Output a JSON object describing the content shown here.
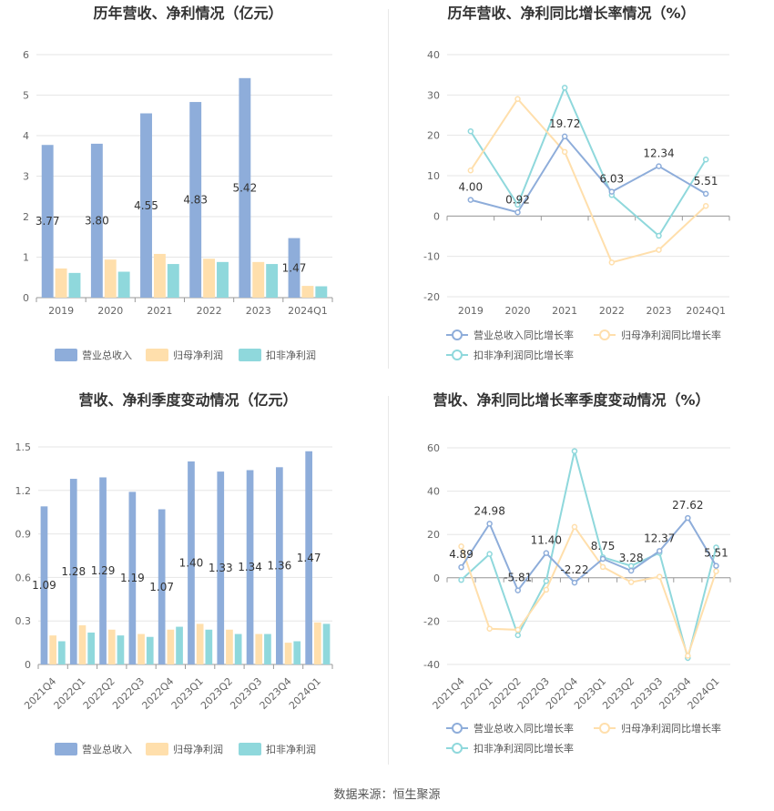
{
  "source_label": "数据来源：恒生聚源",
  "colors": {
    "revenue": "#8EADDA",
    "netprofit": "#FFDFAC",
    "deducted": "#8FD8DC",
    "axis_text": "#666666",
    "grid": "#E6E6E6",
    "label_text": "#333333"
  },
  "chart_data": [
    {
      "type": "bar",
      "title": "历年营收、净利情况（亿元）",
      "categories": [
        "2019",
        "2020",
        "2021",
        "2022",
        "2023",
        "2024Q1"
      ],
      "ylim": [
        0,
        6
      ],
      "yticks": [
        0,
        1,
        2,
        3,
        4,
        5,
        6
      ],
      "grid": true,
      "legend_position": "bottom",
      "label_series": 0,
      "series": [
        {
          "name": "营业总收入",
          "values": [
            3.77,
            3.8,
            4.55,
            4.83,
            5.42,
            1.47
          ],
          "labels": [
            "3.77",
            "3.80",
            "4.55",
            "4.83",
            "5.42",
            "1.47"
          ]
        },
        {
          "name": "归母净利润",
          "values": [
            0.72,
            0.94,
            1.08,
            0.96,
            0.88,
            0.29
          ]
        },
        {
          "name": "扣非净利润",
          "values": [
            0.61,
            0.64,
            0.83,
            0.88,
            0.83,
            0.28
          ]
        }
      ]
    },
    {
      "type": "line",
      "title": "历年营收、净利同比增长率情况（%）",
      "categories": [
        "2019",
        "2020",
        "2021",
        "2022",
        "2023",
        "2024Q1"
      ],
      "ylim": [
        -20,
        40
      ],
      "yticks": [
        -20,
        -10,
        0,
        10,
        20,
        30,
        40
      ],
      "grid": true,
      "legend_position": "bottom",
      "label_series": 0,
      "series": [
        {
          "name": "营业总收入同比增长率",
          "values": [
            4.0,
            0.92,
            19.72,
            6.03,
            12.34,
            5.51
          ],
          "labels": [
            "4.00",
            "0.92",
            "19.72",
            "6.03",
            "12.34",
            "5.51"
          ]
        },
        {
          "name": "归母净利润同比增长率",
          "values": [
            11.3,
            29.0,
            15.9,
            -11.5,
            -8.4,
            2.5
          ]
        },
        {
          "name": "扣非净利润同比增长率",
          "values": [
            21.0,
            2.8,
            31.8,
            5.2,
            -4.9,
            14.0
          ]
        }
      ]
    },
    {
      "type": "bar",
      "title": "营收、净利季度变动情况（亿元）",
      "categories": [
        "2021Q4",
        "2022Q1",
        "2022Q2",
        "2022Q3",
        "2022Q4",
        "2023Q1",
        "2023Q2",
        "2023Q3",
        "2023Q4",
        "2024Q1"
      ],
      "ylim": [
        0,
        1.5
      ],
      "yticks": [
        0,
        0.3,
        0.6,
        0.9,
        1.2,
        1.5
      ],
      "grid": true,
      "legend_position": "bottom",
      "label_series": 0,
      "series": [
        {
          "name": "营业总收入",
          "values": [
            1.09,
            1.28,
            1.29,
            1.19,
            1.07,
            1.4,
            1.33,
            1.34,
            1.36,
            1.47
          ],
          "labels": [
            "1.09",
            "1.28",
            "1.29",
            "1.19",
            "1.07",
            "1.40",
            "1.33",
            "1.34",
            "1.36",
            "1.47"
          ]
        },
        {
          "name": "归母净利润",
          "values": [
            0.2,
            0.27,
            0.24,
            0.21,
            0.24,
            0.28,
            0.24,
            0.21,
            0.15,
            0.29
          ]
        },
        {
          "name": "扣非净利润",
          "values": [
            0.16,
            0.22,
            0.2,
            0.19,
            0.26,
            0.24,
            0.21,
            0.21,
            0.16,
            0.28
          ]
        }
      ]
    },
    {
      "type": "line",
      "title": "营收、净利同比增长率季度变动情况（%）",
      "categories": [
        "2021Q4",
        "2022Q1",
        "2022Q2",
        "2022Q3",
        "2022Q4",
        "2023Q1",
        "2023Q2",
        "2023Q3",
        "2023Q4",
        "2024Q1"
      ],
      "ylim": [
        -40,
        60
      ],
      "yticks": [
        -40,
        -20,
        0,
        20,
        40,
        60
      ],
      "grid": true,
      "legend_position": "bottom",
      "label_series": 0,
      "series": [
        {
          "name": "营业总收入同比增长率",
          "values": [
            4.89,
            24.98,
            -5.81,
            11.4,
            -2.22,
            8.75,
            3.28,
            12.37,
            27.62,
            5.51
          ],
          "labels": [
            "4.89",
            "24.98",
            "-5.81",
            "11.40",
            "-2.22",
            "8.75",
            "3.28",
            "12.37",
            "27.62",
            "5.51"
          ]
        },
        {
          "name": "归母净利润同比增长率",
          "values": [
            14.5,
            -23.5,
            -24.0,
            -5.5,
            23.5,
            5.0,
            -2.0,
            0.5,
            -36.0,
            3.0
          ]
        },
        {
          "name": "扣非净利润同比增长率",
          "values": [
            -1.0,
            11.0,
            -26.5,
            -1.5,
            58.5,
            9.5,
            5.5,
            11.5,
            -37.0,
            14.0
          ]
        }
      ]
    }
  ]
}
